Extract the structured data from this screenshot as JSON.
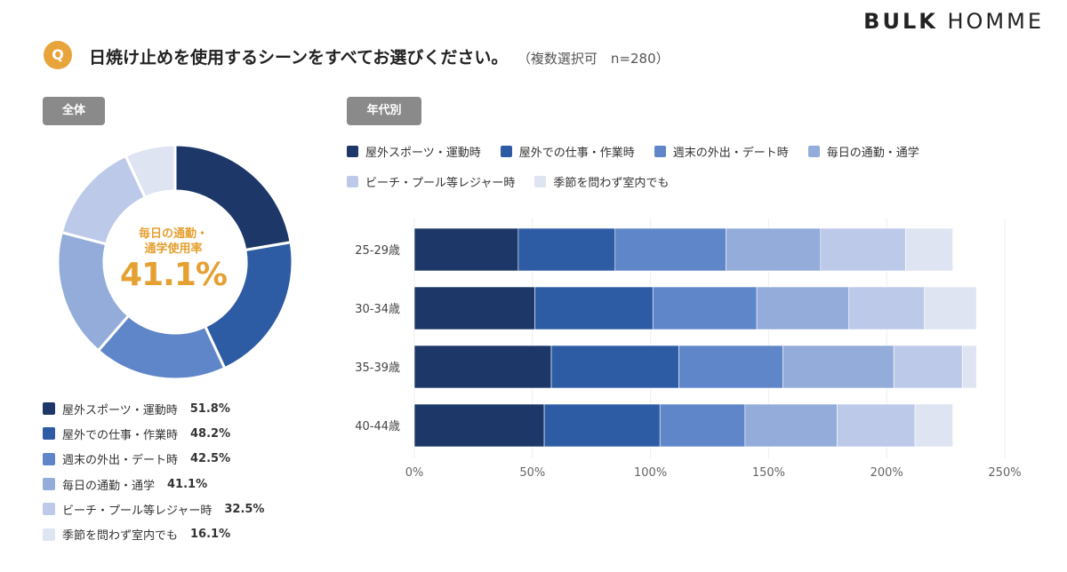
{
  "brand": {
    "bold": "BULK",
    "light": "HOMME"
  },
  "question": {
    "badge": "Q",
    "text": "日焼け止めを使用するシーンをすべてお選びください。",
    "note": "（複数選択可　n=280）"
  },
  "sections": {
    "overall": "全体",
    "by_age": "年代別"
  },
  "donut_center": {
    "line1": "毎日の通勤・",
    "line2": "通学使用率",
    "value": "41.1%"
  },
  "colors": [
    "#1d3868",
    "#2e5ca4",
    "#5f86c8",
    "#93acd9",
    "#bcc9e9",
    "#dfe4f3"
  ],
  "chart_data": [
    {
      "type": "pie",
      "title": "全体",
      "labels": [
        "屋外スポーツ・運動時",
        "屋外での仕事・作業時",
        "週末の外出・デート時",
        "毎日の通勤・通学",
        "ビーチ・プール等レジャー時",
        "季節を問わず室内でも"
      ],
      "values": [
        51.8,
        48.2,
        42.5,
        41.1,
        32.5,
        16.1
      ],
      "value_labels": [
        "51.8%",
        "48.2%",
        "42.5%",
        "41.1%",
        "32.5%",
        "16.1%"
      ],
      "donut": true
    },
    {
      "type": "bar",
      "orientation": "horizontal",
      "stacked": true,
      "title": "年代別",
      "categories": [
        "25-29歳",
        "30-34歳",
        "35-39歳",
        "40-44歳"
      ],
      "series": [
        {
          "name": "屋外スポーツ・運動時",
          "values": [
            44,
            51,
            58,
            55
          ]
        },
        {
          "name": "屋外での仕事・作業時",
          "values": [
            41,
            50,
            54,
            49
          ]
        },
        {
          "name": "週末の外出・デート時",
          "values": [
            47,
            44,
            44,
            36
          ]
        },
        {
          "name": "毎日の通勤・通学",
          "values": [
            40,
            39,
            47,
            39
          ]
        },
        {
          "name": "ビーチ・プール等レジャー時",
          "values": [
            36,
            32,
            29,
            33
          ]
        },
        {
          "name": "季節を問わず室内でも",
          "values": [
            20,
            22,
            6,
            16
          ]
        }
      ],
      "xlim": [
        0,
        250
      ],
      "ticks": [
        "0%",
        "50%",
        "100%",
        "150%",
        "200%",
        "250%"
      ],
      "grid": true
    }
  ]
}
